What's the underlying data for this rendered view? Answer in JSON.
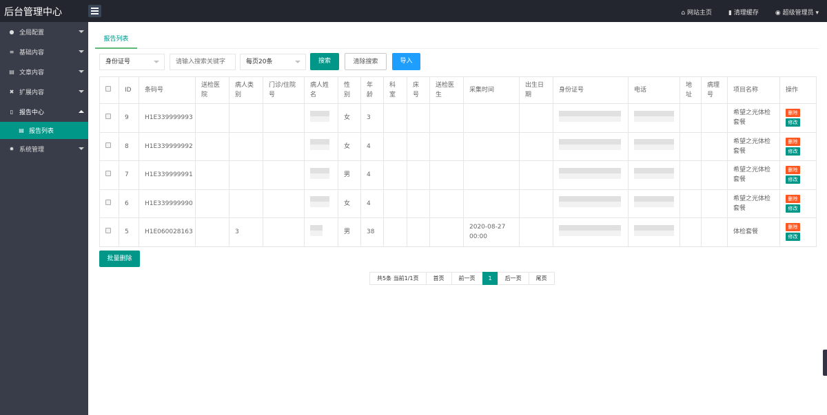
{
  "app": {
    "title": "后台管理中心"
  },
  "topbar": {
    "home": "网站主页",
    "clear_cache": "清理缓存",
    "user": "超级管理员"
  },
  "sidebar": {
    "items": [
      {
        "label": "全局配置",
        "icon": "globe-icon"
      },
      {
        "label": "基础内容",
        "icon": "sliders-icon"
      },
      {
        "label": "文章内容",
        "icon": "document-icon"
      },
      {
        "label": "扩展内容",
        "icon": "expand-icon"
      },
      {
        "label": "报告中心",
        "icon": "file-icon",
        "open": true
      },
      {
        "label": "报告列表",
        "icon": "document-icon",
        "sub": true,
        "active": true
      },
      {
        "label": "系统管理",
        "icon": "gear-icon"
      }
    ]
  },
  "tab": "报告列表",
  "search": {
    "field_select": "身份证号",
    "placeholder": "请输入搜索关键字",
    "page_size": "每页20条",
    "search_btn": "搜索",
    "clear_btn": "清除搜索",
    "import_btn": "导入"
  },
  "colors": {
    "primary": "#009688",
    "blue": "#1e9fff",
    "danger": "#ff5722",
    "sidebar": "#393d49",
    "topbar": "#23262e"
  },
  "table": {
    "headers": [
      "",
      "ID",
      "条码号",
      "送检医院",
      "病人类别",
      "门诊/住院号",
      "病人姓名",
      "性别",
      "年龄",
      "科室",
      "床号",
      "送检医生",
      "采集时间",
      "出生日期",
      "身份证号",
      "电话",
      "地址",
      "病理号",
      "项目名称",
      "操作"
    ],
    "rows": [
      {
        "id": "9",
        "barcode": "H1E339999993",
        "type": "",
        "gender": "女",
        "age": "3",
        "time": "",
        "project": "希望之光体检套餐"
      },
      {
        "id": "8",
        "barcode": "H1E339999992",
        "type": "",
        "gender": "女",
        "age": "4",
        "time": "",
        "project": "希望之光体检套餐"
      },
      {
        "id": "7",
        "barcode": "H1E339999991",
        "type": "",
        "gender": "男",
        "age": "4",
        "time": "",
        "project": "希望之光体检套餐"
      },
      {
        "id": "6",
        "barcode": "H1E339999990",
        "type": "",
        "gender": "女",
        "age": "4",
        "time": "",
        "project": "希望之光体检套餐"
      },
      {
        "id": "5",
        "barcode": "H1E060028163",
        "type": "3",
        "gender": "男",
        "age": "38",
        "time": "2020-08-27 00:00",
        "project": "体检套餐"
      }
    ],
    "delete_label": "删除",
    "edit_label": "修改"
  },
  "batch_delete": "批量删除",
  "pager": {
    "summary": "共5条 当前1/1页",
    "first": "首页",
    "prev": "前一页",
    "current": "1",
    "next": "后一页",
    "last": "尾页"
  }
}
